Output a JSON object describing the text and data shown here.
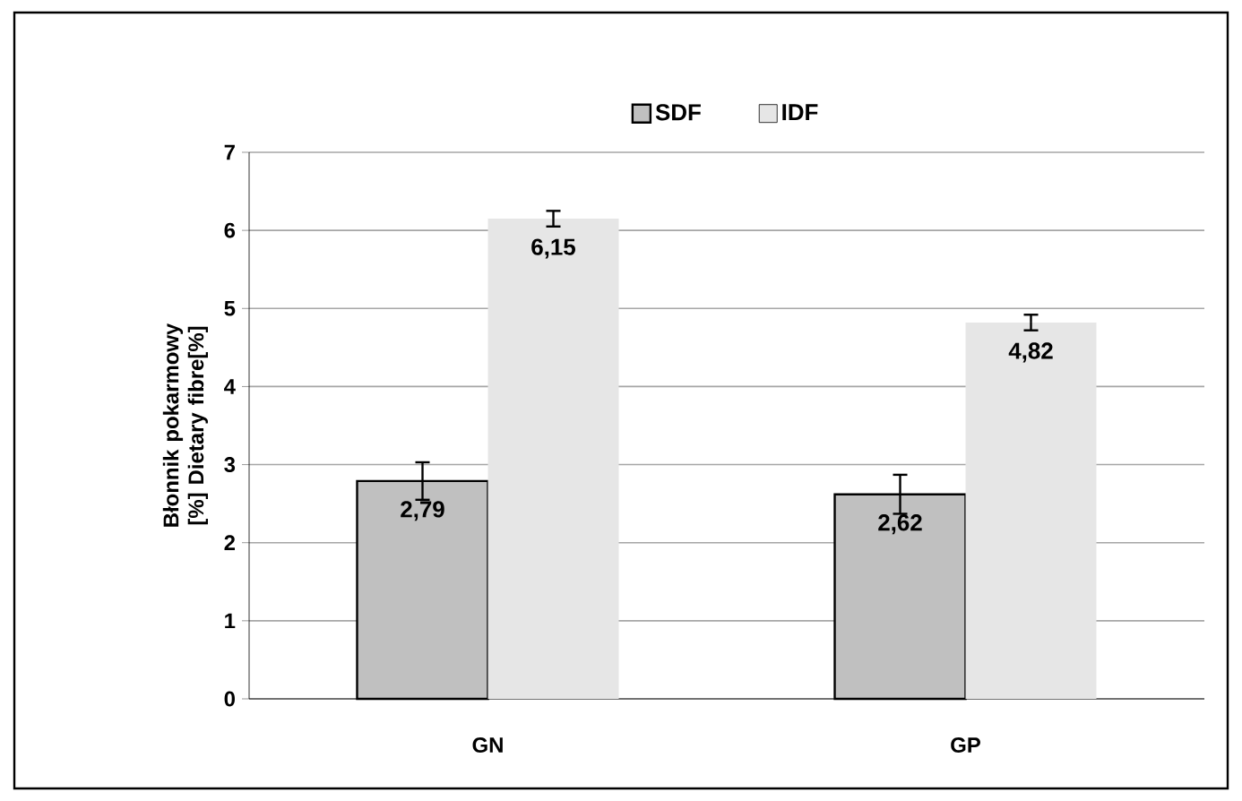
{
  "chart_data": {
    "type": "bar",
    "ylabel": "Błonnik pokarmowy [%] Dietary fibre[%]",
    "categories": [
      "GN",
      "GP"
    ],
    "series": [
      {
        "name": "SDF",
        "color": "#c0c0c0",
        "values": [
          2.79,
          2.62
        ],
        "errors": [
          0.24,
          0.25
        ],
        "value_labels": [
          "2,79",
          "2,62"
        ]
      },
      {
        "name": "IDF",
        "color": "#e6e6e6",
        "values": [
          6.15,
          4.82
        ],
        "errors": [
          0.1,
          0.1
        ],
        "value_labels": [
          "6,15",
          "4,82"
        ]
      }
    ],
    "ylim": [
      0,
      7
    ],
    "yticks": [
      0,
      1,
      2,
      3,
      4,
      5,
      6,
      7
    ],
    "grid": "y",
    "legend": "top"
  }
}
